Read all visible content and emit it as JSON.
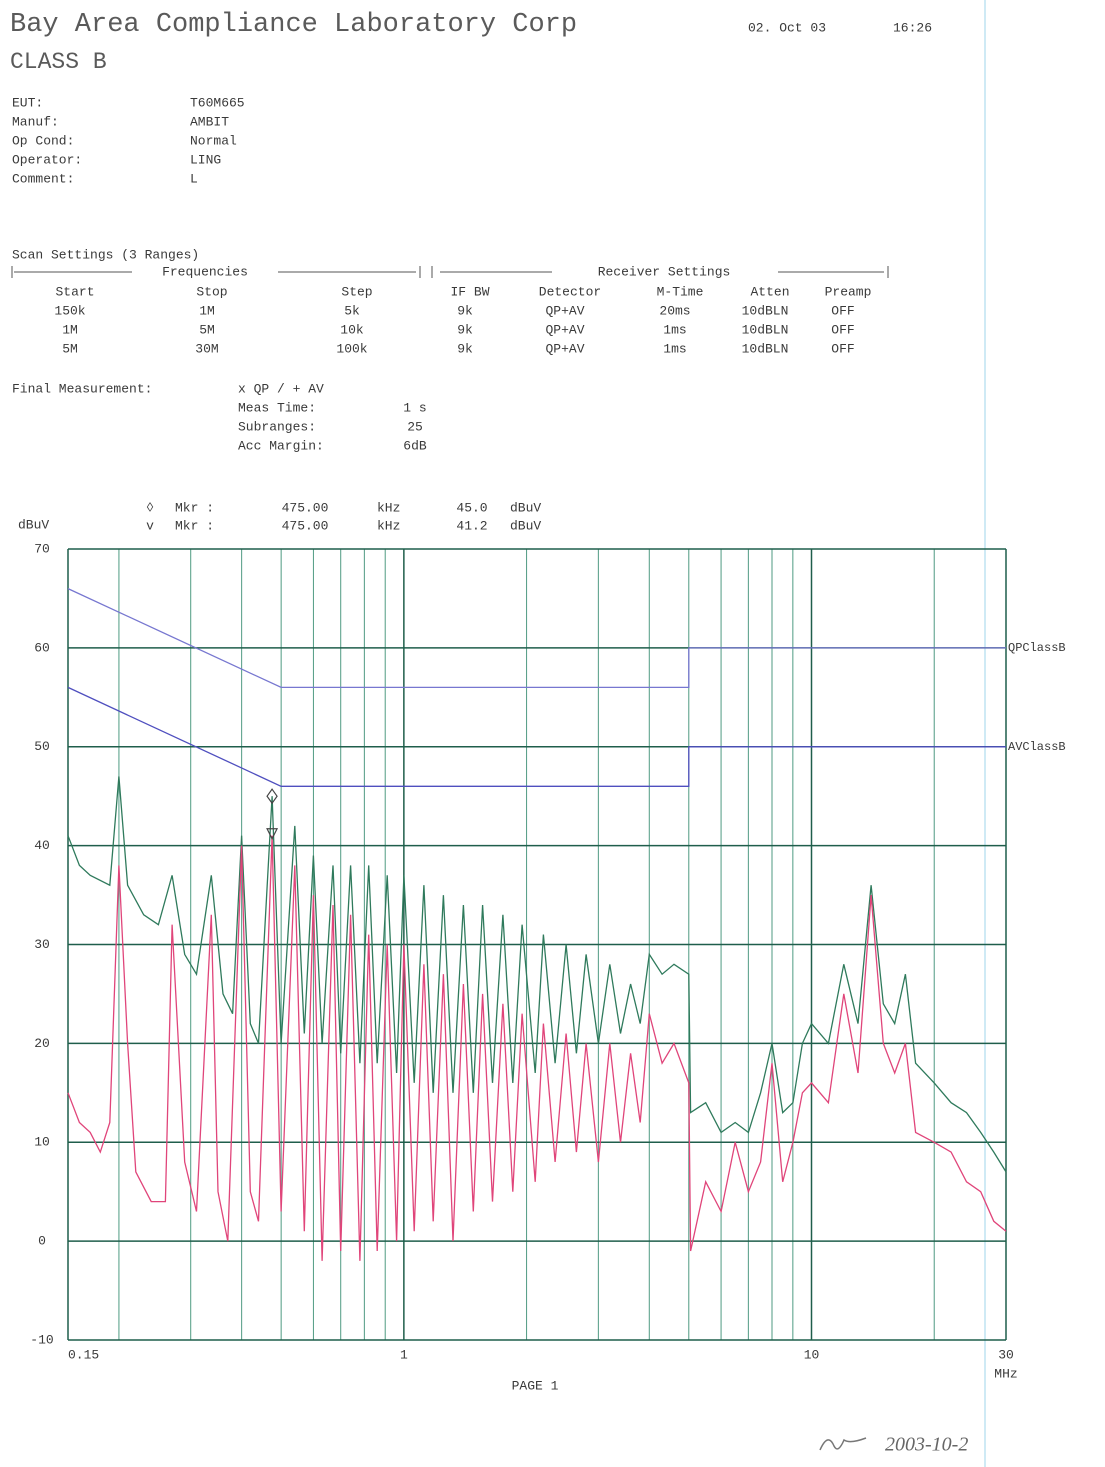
{
  "header": {
    "title": "Bay Area Compliance Laboratory Corp",
    "date": "02. Oct 03",
    "time": "16:26",
    "class": "CLASS B"
  },
  "fields": [
    {
      "label": "EUT:",
      "value": "T60M665"
    },
    {
      "label": "Manuf:",
      "value": "AMBIT"
    },
    {
      "label": "Op Cond:",
      "value": "Normal"
    },
    {
      "label": "Operator:",
      "value": "LING"
    },
    {
      "label": "Comment:",
      "value": "L"
    }
  ],
  "scan_settings": {
    "title": "Scan Settings (3 Ranges)",
    "groups": [
      "Frequencies",
      "Receiver Settings"
    ],
    "columns": [
      "Start",
      "Stop",
      "Step",
      "IF BW",
      "Detector",
      "M-Time",
      "Atten",
      "Preamp"
    ],
    "rows": [
      [
        "150k",
        "1M",
        "5k",
        "9k",
        "QP+AV",
        "20ms",
        "10dBLN",
        "OFF"
      ],
      [
        "1M",
        "5M",
        "10k",
        "9k",
        "QP+AV",
        "1ms",
        "10dBLN",
        "OFF"
      ],
      [
        "5M",
        "30M",
        "100k",
        "9k",
        "QP+AV",
        "1ms",
        "10dBLN",
        "OFF"
      ]
    ]
  },
  "final_measurement": {
    "label": "Final Measurement:",
    "detectors": "x QP / + AV",
    "items": [
      {
        "label": "Meas Time:",
        "value": "1 s"
      },
      {
        "label": "Subranges:",
        "value": "25"
      },
      {
        "label": "Acc Margin:",
        "value": "6dB"
      }
    ]
  },
  "chart_data": {
    "type": "line",
    "y_label": "dBuV",
    "x_unit": "MHz",
    "log_x": true,
    "grid": true,
    "xlim": [
      0.15,
      30
    ],
    "ylim": [
      -10,
      70
    ],
    "xticks": [
      0.15,
      1,
      10,
      30
    ],
    "yticks": [
      -10,
      0,
      10,
      20,
      30,
      40,
      50,
      60,
      70
    ],
    "series": [
      {
        "name": "QPClassB",
        "color": "#7777d0",
        "x": [
          0.15,
          0.5,
          5,
          5,
          30
        ],
        "values": [
          66,
          56,
          56,
          60,
          60
        ]
      },
      {
        "name": "AVClassB",
        "color": "#4f4fbf",
        "x": [
          0.15,
          0.5,
          5,
          5,
          30
        ],
        "values": [
          56,
          46,
          46,
          50,
          50
        ]
      },
      {
        "color": "#2f7a5c",
        "x": [
          0.15,
          0.16,
          0.17,
          0.19,
          0.2,
          0.21,
          0.23,
          0.25,
          0.27,
          0.29,
          0.31,
          0.337,
          0.36,
          0.38,
          0.4,
          0.42,
          0.44,
          0.475,
          0.5,
          0.54,
          0.57,
          0.6,
          0.63,
          0.67,
          0.7,
          0.74,
          0.78,
          0.82,
          0.86,
          0.91,
          0.96,
          1.0,
          1.06,
          1.12,
          1.18,
          1.25,
          1.32,
          1.4,
          1.48,
          1.56,
          1.65,
          1.75,
          1.85,
          1.95,
          2.1,
          2.2,
          2.35,
          2.5,
          2.65,
          2.8,
          3.0,
          3.2,
          3.4,
          3.6,
          3.8,
          4.0,
          4.3,
          4.6,
          5.0,
          5.05,
          5.5,
          6.0,
          6.5,
          7.0,
          7.5,
          8.0,
          8.5,
          9.0,
          9.5,
          10,
          11,
          12,
          13,
          14,
          15,
          16,
          17,
          18,
          20,
          22,
          24,
          26,
          28,
          30
        ],
        "values": [
          41,
          38,
          37,
          36,
          47,
          36,
          33,
          32,
          37,
          29,
          27,
          37,
          25,
          23,
          41,
          22,
          20,
          45,
          20,
          42,
          21,
          39,
          20,
          38,
          19,
          38,
          18,
          38,
          18,
          37,
          17,
          37,
          16,
          36,
          15,
          35,
          15,
          34,
          15,
          34,
          16,
          33,
          16,
          32,
          17,
          31,
          18,
          30,
          19,
          29,
          20,
          28,
          21,
          26,
          22,
          29,
          27,
          28,
          27,
          13,
          14,
          11,
          12,
          11,
          15,
          20,
          13,
          14,
          20,
          22,
          20,
          28,
          22,
          36,
          24,
          22,
          27,
          18,
          16,
          14,
          13,
          11,
          9,
          7
        ]
      },
      {
        "color": "#e0457a",
        "x": [
          0.15,
          0.16,
          0.17,
          0.18,
          0.19,
          0.2,
          0.21,
          0.22,
          0.24,
          0.26,
          0.27,
          0.29,
          0.31,
          0.337,
          0.35,
          0.37,
          0.4,
          0.42,
          0.44,
          0.475,
          0.5,
          0.54,
          0.57,
          0.6,
          0.63,
          0.67,
          0.7,
          0.74,
          0.78,
          0.82,
          0.86,
          0.91,
          0.96,
          1.0,
          1.06,
          1.12,
          1.18,
          1.25,
          1.32,
          1.4,
          1.48,
          1.56,
          1.65,
          1.75,
          1.85,
          1.95,
          2.1,
          2.2,
          2.35,
          2.5,
          2.65,
          2.8,
          3.0,
          3.2,
          3.4,
          3.6,
          3.8,
          4.0,
          4.3,
          4.6,
          5.0,
          5.05,
          5.5,
          6.0,
          6.5,
          7.0,
          7.5,
          8.0,
          8.5,
          9.0,
          9.5,
          10,
          11,
          12,
          13,
          14,
          15,
          16,
          17,
          18,
          20,
          22,
          24,
          26,
          28,
          30
        ],
        "values": [
          15,
          12,
          11,
          9,
          12,
          38,
          20,
          7,
          4,
          4,
          32,
          8,
          3,
          33,
          5,
          0,
          40,
          5,
          2,
          41,
          3,
          38,
          1,
          35,
          -2,
          34,
          -1,
          33,
          -2,
          31,
          -1,
          30,
          0,
          30,
          1,
          28,
          2,
          27,
          0,
          26,
          3,
          25,
          4,
          24,
          5,
          23,
          6,
          22,
          8,
          21,
          9,
          20,
          8,
          20,
          10,
          19,
          12,
          23,
          18,
          20,
          16,
          -1,
          6,
          3,
          10,
          5,
          8,
          18,
          6,
          10,
          15,
          16,
          14,
          25,
          17,
          35,
          20,
          17,
          20,
          11,
          10,
          9,
          6,
          5,
          2,
          1
        ]
      }
    ],
    "markers": [
      {
        "symbol": "◊",
        "label": "Mkr :",
        "x": 0.475,
        "x_label": "475.00",
        "x_unit": "kHz",
        "y": 45,
        "y_label": "45.0",
        "y_unit": "dBuV"
      },
      {
        "symbol": "v",
        "label": "Mkr :",
        "x": 0.475,
        "x_label": "475.00",
        "x_unit": "kHz",
        "y": 41.2,
        "y_label": "41.2",
        "y_unit": "dBuV"
      }
    ]
  },
  "footer": {
    "page": "PAGE 1",
    "signature_date": "2003-10-2"
  }
}
